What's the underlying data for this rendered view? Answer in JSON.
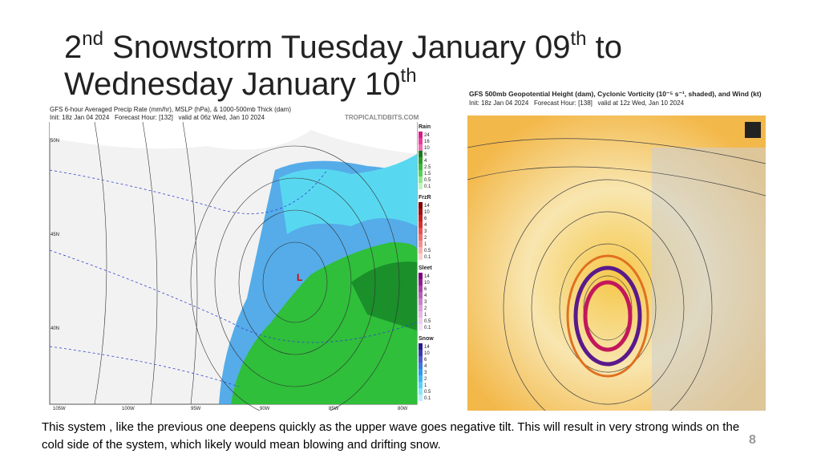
{
  "title": [
    "2",
    "nd",
    " Snowstorm Tuesday January 09",
    "th",
    " to",
    "Wednesday January 10",
    "th"
  ],
  "left_map": {
    "header": "GFS 6-hour Averaged Precip Rate (mm/hr), MSLP (hPa), & 1000-500mb Thick (dam)",
    "init": "Init: 18z Jan 04 2024",
    "forecast": "Forecast Hour: [132]",
    "valid": "valid at 06z Wed, Jan 10 2024",
    "credit": "TROPICALTIDBITS.COM",
    "lat_labels": [
      "50N",
      "45N",
      "40N"
    ],
    "lon_labels": [
      "105W",
      "100W",
      "95W",
      "90W",
      "85W",
      "80W"
    ],
    "legend": [
      {
        "name": "Rain",
        "labels": [
          "24",
          "16",
          "10",
          "6",
          "4",
          "2.5",
          "1.5",
          "0.5",
          "0.1"
        ]
      },
      {
        "name": "FrzR",
        "labels": [
          "14",
          "10",
          "6",
          "4",
          "3",
          "2",
          "1",
          "0.5",
          "0.1"
        ]
      },
      {
        "name": "Sleet",
        "labels": [
          "14",
          "10",
          "6",
          "4",
          "3",
          "2",
          "1",
          "0.5",
          "0.1"
        ]
      },
      {
        "name": "Snow",
        "labels": [
          "14",
          "10",
          "6",
          "4",
          "3",
          "2",
          "1",
          "0.5",
          "0.1"
        ]
      }
    ]
  },
  "right_map": {
    "header": "GFS 500mb Geopotential Height (dam), Cyclonic Vorticity (10⁻⁵ s⁻¹, shaded), and Wind (kt)",
    "init": "Init: 18z Jan 04 2024",
    "forecast": "Forecast Hour: [138]",
    "valid": "valid at 12z Wed, Jan 10 2024"
  },
  "body_text": "This system , like the  previous one deepens quickly as the upper wave goes negative tilt.  This will result in very strong winds on the cold side of the system, which likely would mean blowing and drifting snow.",
  "page_number": "8"
}
